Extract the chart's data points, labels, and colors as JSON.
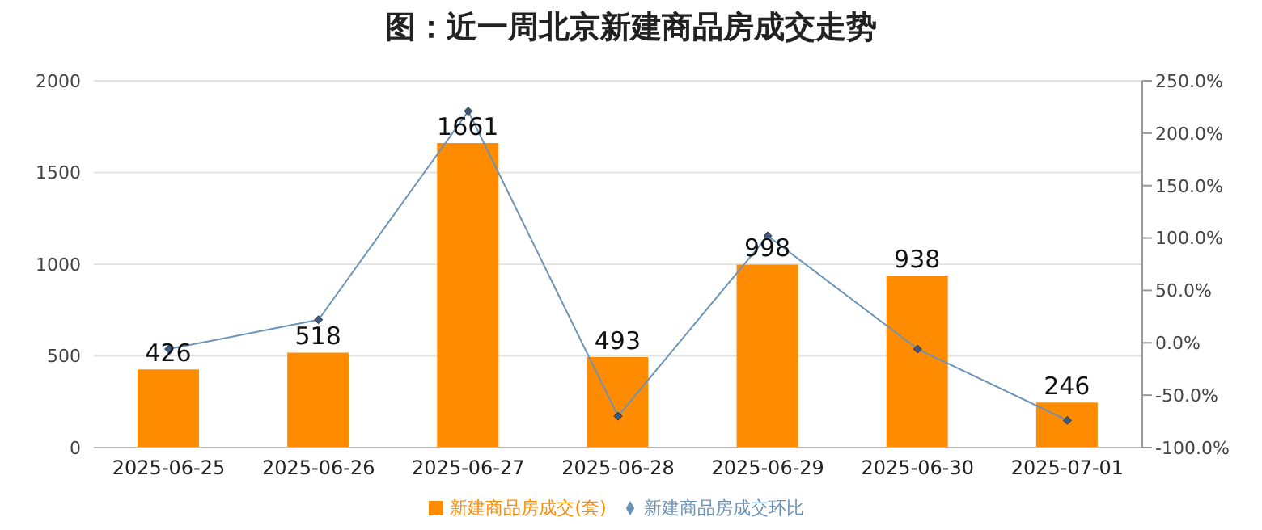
{
  "chart_data": {
    "type": "bar",
    "title": "图：近一周北京新建商品房成交走势",
    "categories": [
      "2025-06-25",
      "2025-06-26",
      "2025-06-27",
      "2025-06-28",
      "2025-06-29",
      "2025-06-30",
      "2025-07-01"
    ],
    "series": [
      {
        "name": "新建商品房成交(套)",
        "color": "#ff8c00",
        "values": [
          426,
          518,
          1661,
          493,
          998,
          938,
          246
        ],
        "data_labels": true
      },
      {
        "name": "新建商品房成交环比",
        "type": "line",
        "axis": "y2",
        "color": "#6b93b8",
        "values": [
          -6,
          22,
          221,
          -70,
          102,
          -6,
          -74
        ],
        "marker": "diamond"
      }
    ],
    "ylim": [
      0,
      2000
    ],
    "yticks": [
      0,
      500,
      1000,
      1500,
      2000
    ],
    "y2lim": [
      -100,
      250
    ],
    "y2ticks": [
      {
        "value": -100,
        "label": "-100.0%"
      },
      {
        "value": -50,
        "label": "-50.0%"
      },
      {
        "value": 0,
        "label": "0.0%"
      },
      {
        "value": 50,
        "label": "50.0%"
      },
      {
        "value": 100,
        "label": "100.0%"
      },
      {
        "value": 150,
        "label": "150.0%"
      },
      {
        "value": 200,
        "label": "200.0%"
      },
      {
        "value": 250,
        "label": "250.0%"
      }
    ],
    "grid": "y",
    "legend": "bottom"
  }
}
